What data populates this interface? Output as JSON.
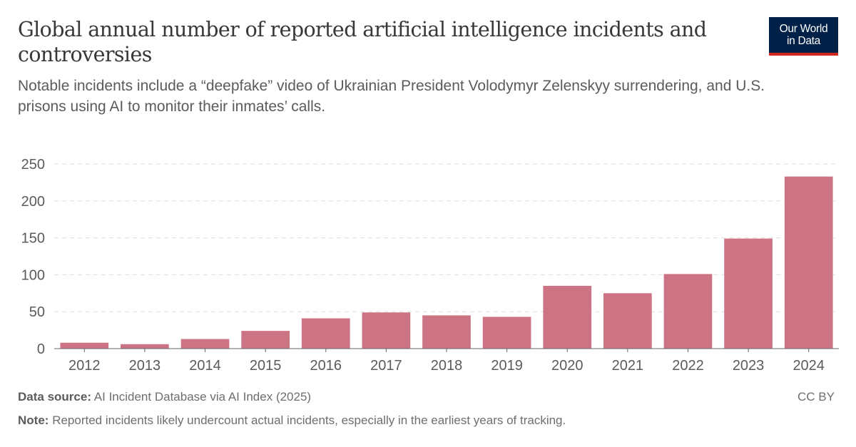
{
  "header": {
    "title": "Global annual number of reported artificial intelligence incidents and controversies",
    "subtitle": "Notable incidents include a “deepfake” video of Ukrainian President Volodymyr Zelenskyy surrendering, and U.S. prisons using AI to monitor their inmates’ calls."
  },
  "logo": {
    "line1": "Our World",
    "line2": "in Data"
  },
  "footer": {
    "source_label": "Data source:",
    "source_text": "AI Incident Database via AI Index (2025)",
    "note_label": "Note:",
    "note_text": "Reported incidents likely undercount actual incidents, especially in the earliest years of tracking.",
    "license": "CC BY"
  },
  "colors": {
    "bar": "#cc7484",
    "grid": "#dddddd",
    "axis": "#666666"
  },
  "chart_data": {
    "type": "bar",
    "categories": [
      "2012",
      "2013",
      "2014",
      "2015",
      "2016",
      "2017",
      "2018",
      "2019",
      "2020",
      "2021",
      "2022",
      "2023",
      "2024"
    ],
    "values": [
      8,
      6,
      13,
      24,
      41,
      49,
      45,
      43,
      85,
      75,
      101,
      149,
      233
    ],
    "ylim": [
      0,
      250
    ],
    "yticks": [
      0,
      50,
      100,
      150,
      200,
      250
    ],
    "grid": true,
    "legend": "none"
  }
}
